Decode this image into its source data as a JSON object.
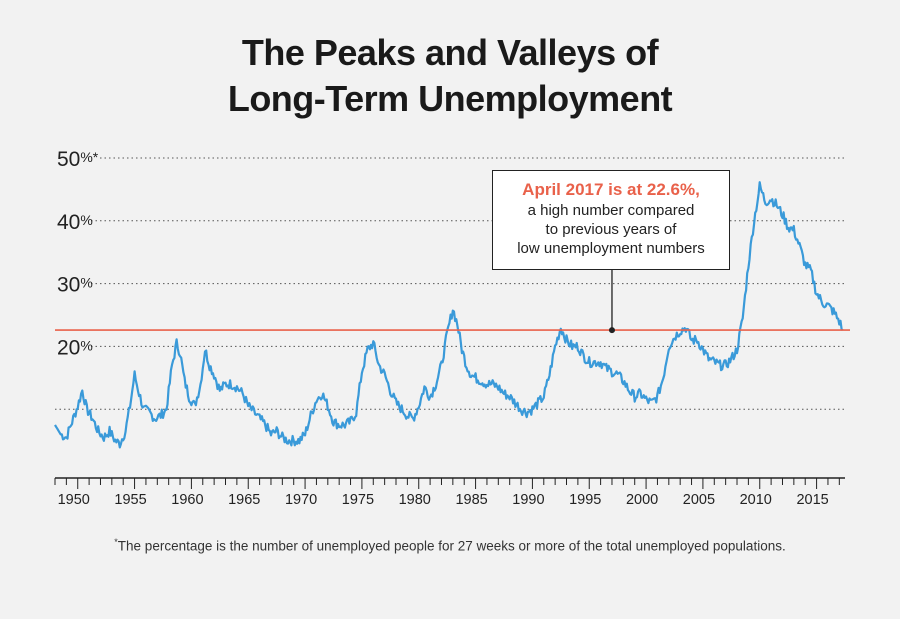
{
  "title_line1": "The Peaks and Valleys of",
  "title_line2": "Long-Term Unemployment",
  "callout": {
    "highlight": "April 2017 is at 22.6%,",
    "line1": "a high number compared",
    "line2": "to previous years of",
    "line3": "low unemployment numbers"
  },
  "footnote_mark": "*",
  "footnote": "The percentage is the number of unemployed people for 27 weeks or more of the total unemployed populations.",
  "colors": {
    "series": "#3a9ad9",
    "reference": "#e9614a",
    "grid": "#555555",
    "axis": "#222222"
  },
  "chart_data": {
    "type": "line",
    "title": "The Peaks and Valleys of Long-Term Unemployment",
    "xlabel": "",
    "ylabel": "",
    "xlim": [
      1948,
      2017.5
    ],
    "ylim": [
      0,
      50
    ],
    "grid": "horizontal dotted at 10, 20, 30, 40, 50",
    "y_ticks": [
      {
        "value": 20,
        "label": "20%"
      },
      {
        "value": 30,
        "label": "30%"
      },
      {
        "value": 40,
        "label": "40%"
      },
      {
        "value": 50,
        "label": "50%*"
      }
    ],
    "x_ticks": [
      1950,
      1955,
      1960,
      1965,
      1970,
      1975,
      1980,
      1985,
      1990,
      1995,
      2000,
      2005,
      2010,
      2015
    ],
    "reference_line": {
      "value": 22.6,
      "label": "April 2017 is at 22.6%"
    },
    "annotation_point": {
      "x": 1997,
      "y": 22.6
    },
    "series": [
      {
        "x": [
          1948,
          1948.5,
          1949,
          1949.5,
          1950,
          1950.4,
          1950.8,
          1951.3,
          1951.8,
          1952.3,
          1952.8,
          1953.3,
          1953.7,
          1954.2,
          1954.6,
          1955,
          1955.4,
          1955.8,
          1956.3,
          1956.8,
          1957.3,
          1957.8,
          1958.3,
          1958.7,
          1959,
          1959.4,
          1959.8,
          1960.3,
          1960.8,
          1961.2,
          1961.6,
          1962,
          1962.5,
          1963,
          1963.5,
          1964,
          1964.5,
          1965,
          1965.5,
          1966,
          1966.5,
          1967,
          1967.5,
          1968,
          1968.5,
          1969,
          1969.5,
          1970,
          1970.5,
          1971,
          1971.5,
          1972,
          1972.5,
          1973,
          1973.5,
          1974,
          1974.5,
          1975,
          1975.5,
          1976,
          1976.5,
          1977,
          1977.5,
          1978,
          1978.5,
          1979,
          1979.5,
          1980,
          1980.5,
          1981,
          1981.5,
          1982,
          1982.5,
          1983,
          1983.4,
          1983.8,
          1984.2,
          1984.6,
          1985,
          1985.5,
          1986,
          1986.5,
          1987,
          1987.5,
          1988,
          1988.5,
          1989,
          1989.5,
          1990,
          1990.5,
          1991,
          1991.5,
          1992,
          1992.5,
          1993,
          1993.5,
          1994,
          1994.5,
          1995,
          1995.5,
          1996,
          1996.5,
          1997,
          1997.5,
          1998,
          1998.5,
          1999,
          1999.5,
          2000,
          2000.5,
          2001,
          2001.5,
          2002,
          2002.5,
          2003,
          2003.5,
          2004,
          2004.5,
          2005,
          2005.5,
          2006,
          2006.5,
          2007,
          2007.5,
          2008,
          2008.5,
          2009,
          2009.5,
          2010,
          2010.5,
          2011,
          2011.5,
          2012,
          2012.5,
          2013,
          2013.5,
          2014,
          2014.5,
          2015,
          2015.5,
          2016,
          2016.5,
          2017,
          2017.3
        ],
        "y": [
          7.5,
          6.0,
          5.5,
          8.0,
          10.5,
          13.0,
          10.0,
          8.5,
          6.5,
          5.5,
          6.5,
          5.0,
          4.5,
          6.5,
          10.5,
          15.5,
          12.5,
          10.0,
          9.5,
          8.5,
          9.0,
          10.0,
          17.0,
          20.5,
          19.0,
          14.5,
          12.0,
          10.5,
          14.0,
          19.5,
          17.0,
          15.5,
          13.0,
          14.0,
          14.0,
          13.5,
          12.5,
          10.5,
          9.5,
          8.5,
          7.5,
          6.0,
          6.5,
          5.5,
          5.0,
          5.0,
          5.0,
          6.0,
          9.0,
          11.5,
          12.5,
          10.5,
          8.0,
          7.5,
          7.5,
          8.0,
          9.5,
          16.0,
          19.5,
          20.5,
          17.0,
          15.5,
          13.0,
          11.0,
          10.0,
          9.0,
          8.5,
          10.5,
          13.5,
          12.0,
          14.0,
          17.0,
          22.0,
          26.0,
          23.5,
          19.5,
          17.0,
          15.5,
          15.0,
          14.5,
          14.0,
          14.0,
          13.5,
          12.5,
          12.0,
          11.0,
          10.0,
          9.5,
          10.0,
          11.0,
          12.0,
          15.5,
          20.0,
          23.0,
          21.0,
          20.0,
          20.0,
          18.5,
          17.5,
          17.5,
          17.5,
          16.5,
          16.0,
          15.5,
          14.5,
          13.0,
          12.0,
          12.5,
          11.5,
          11.0,
          12.0,
          15.0,
          20.0,
          21.5,
          22.5,
          23.0,
          21.0,
          21.0,
          19.5,
          18.0,
          17.5,
          17.0,
          17.0,
          18.0,
          19.5,
          24.5,
          33.0,
          40.0,
          45.5,
          43.0,
          43.5,
          42.5,
          41.0,
          39.0,
          38.5,
          36.0,
          33.0,
          32.0,
          28.5,
          27.0,
          26.5,
          25.5,
          24.0,
          22.6
        ]
      }
    ]
  }
}
